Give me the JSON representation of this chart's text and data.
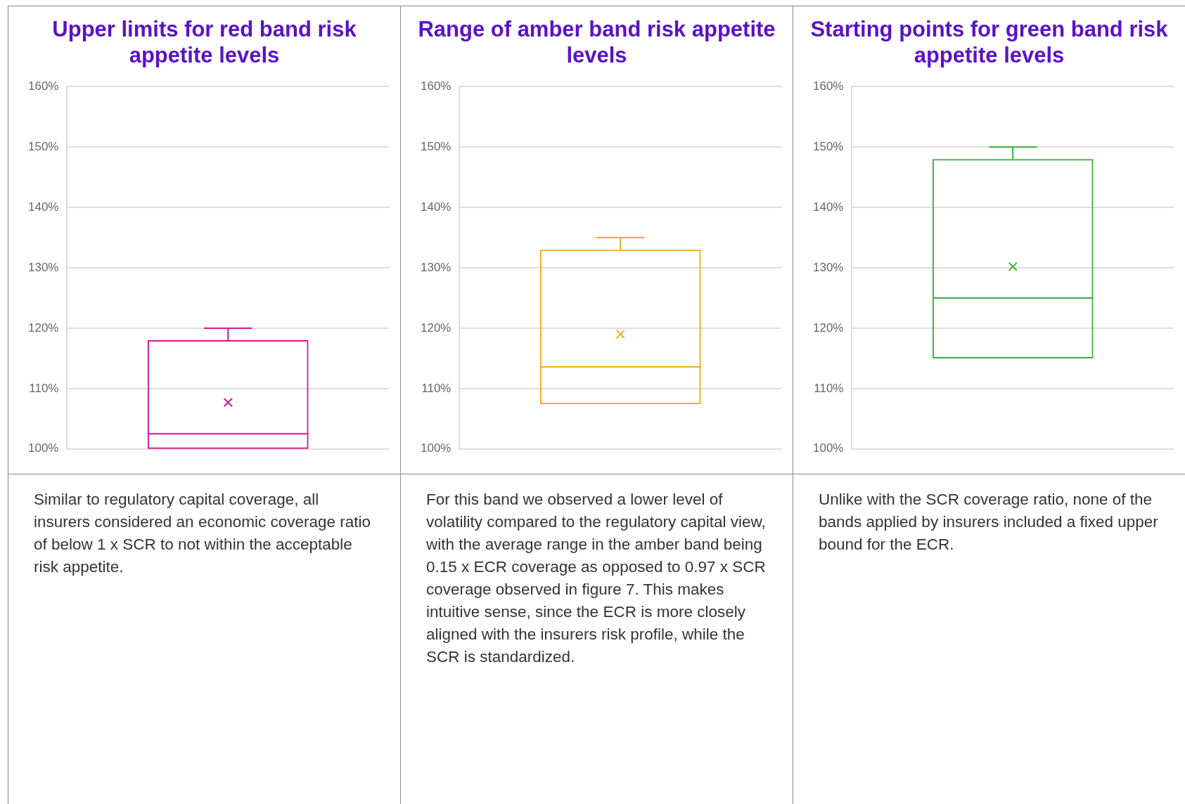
{
  "chart_data": [
    {
      "type": "box",
      "title": "Upper limits for red band risk appetite levels",
      "categories": [
        null
      ],
      "color": "#d6168f",
      "marker": "cross",
      "grid": "y",
      "tick_labels": "y",
      "ylim": [
        100,
        160
      ],
      "yticks": [
        {
          "value": 100,
          "label": "100%"
        },
        {
          "value": 110,
          "label": "110%"
        },
        {
          "value": 120,
          "label": "120%"
        },
        {
          "value": 130,
          "label": "130%"
        },
        {
          "value": 140,
          "label": "140%"
        },
        {
          "value": 150,
          "label": "150%"
        },
        {
          "value": 160,
          "label": "160%"
        }
      ],
      "boxes": [
        {
          "low": 100,
          "q1": 100,
          "median": 102.5,
          "q3": 118,
          "high": 120,
          "mean": 107.7
        }
      ],
      "annotations": [
        "Similar to regulatory capital coverage, all insurers considered an economic coverage ratio of below 1 x SCR to not within the acceptable risk appetite."
      ]
    },
    {
      "type": "box",
      "title": "Range of amber band risk appetite levels",
      "categories": [
        null
      ],
      "color": "#f0ab1a",
      "marker": "cross",
      "grid": "y",
      "tick_labels": "y",
      "ylim": [
        100,
        160
      ],
      "yticks": [
        {
          "value": 100,
          "label": "100%"
        },
        {
          "value": 110,
          "label": "110%"
        },
        {
          "value": 120,
          "label": "120%"
        },
        {
          "value": 130,
          "label": "130%"
        },
        {
          "value": 140,
          "label": "140%"
        },
        {
          "value": 150,
          "label": "150%"
        },
        {
          "value": 160,
          "label": "160%"
        }
      ],
      "boxes": [
        {
          "low": 107.4,
          "q1": 107.4,
          "median": 113.6,
          "q3": 133,
          "high": 135,
          "mean": 119
        }
      ],
      "annotations": [
        "For this band we observed a lower level of volatility compared to the regulatory capital view, with the average range in the amber band being 0.15 x ECR coverage as opposed to 0.97 x SCR coverage observed in figure 7. This makes intuitive sense, since the ECR is more closely aligned with the insurers risk profile, while the SCR is standardized."
      ]
    },
    {
      "type": "box",
      "title": "Starting points for green band risk appetite levels",
      "categories": [
        null
      ],
      "color": "#3cae3c",
      "marker": "cross",
      "grid": "y",
      "tick_labels": "y",
      "ylim": [
        100,
        160
      ],
      "yticks": [
        {
          "value": 100,
          "label": "100%"
        },
        {
          "value": 110,
          "label": "110%"
        },
        {
          "value": 120,
          "label": "120%"
        },
        {
          "value": 130,
          "label": "130%"
        },
        {
          "value": 140,
          "label": "140%"
        },
        {
          "value": 150,
          "label": "150%"
        },
        {
          "value": 160,
          "label": "160%"
        }
      ],
      "boxes": [
        {
          "low": 115,
          "q1": 115,
          "median": 125,
          "q3": 148,
          "high": 150,
          "mean": 130.2
        }
      ],
      "annotations": [
        "Unlike with the SCR coverage ratio, none of the bands applied by insurers included a fixed upper bound for the ECR."
      ]
    }
  ]
}
